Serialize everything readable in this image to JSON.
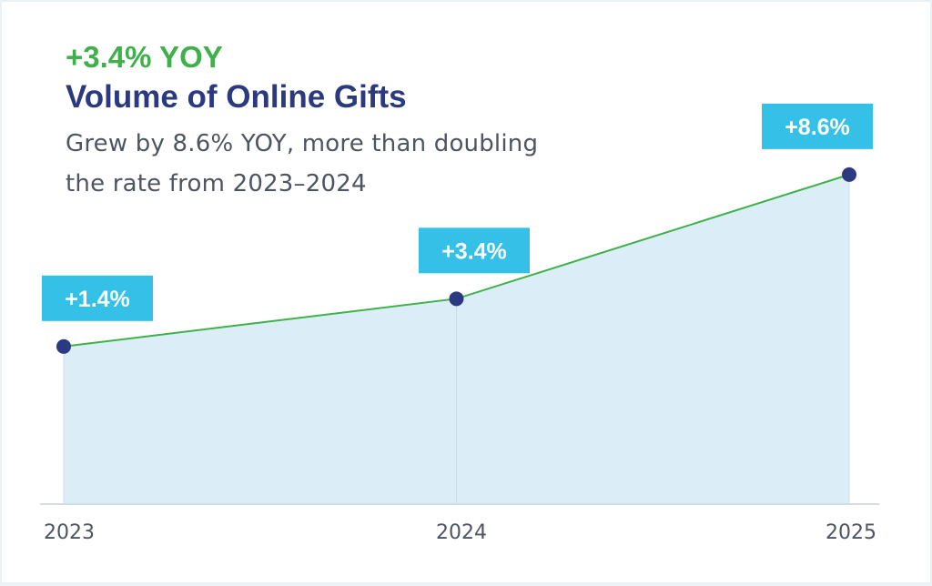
{
  "header": {
    "headline": "+3.4% YOY",
    "title": "Volume of Online Gifts",
    "subtitle": "Grew by 8.6% YOY, more than doubling the rate from 2023–2024"
  },
  "colors": {
    "line": "#3fb14b",
    "area": "#dbeef8",
    "point": "#2b3a80",
    "label_bg": "#35c0e8",
    "axis": "#d3dbe3"
  },
  "chart_data": {
    "type": "area",
    "x": [
      "2023",
      "2024",
      "2025"
    ],
    "values": [
      1.4,
      3.4,
      8.6
    ],
    "data_labels": [
      "+1.4%",
      "+3.4%",
      "+8.6%"
    ],
    "ylim": [
      -5.2,
      10.5
    ],
    "grid": false,
    "legend": "none"
  }
}
